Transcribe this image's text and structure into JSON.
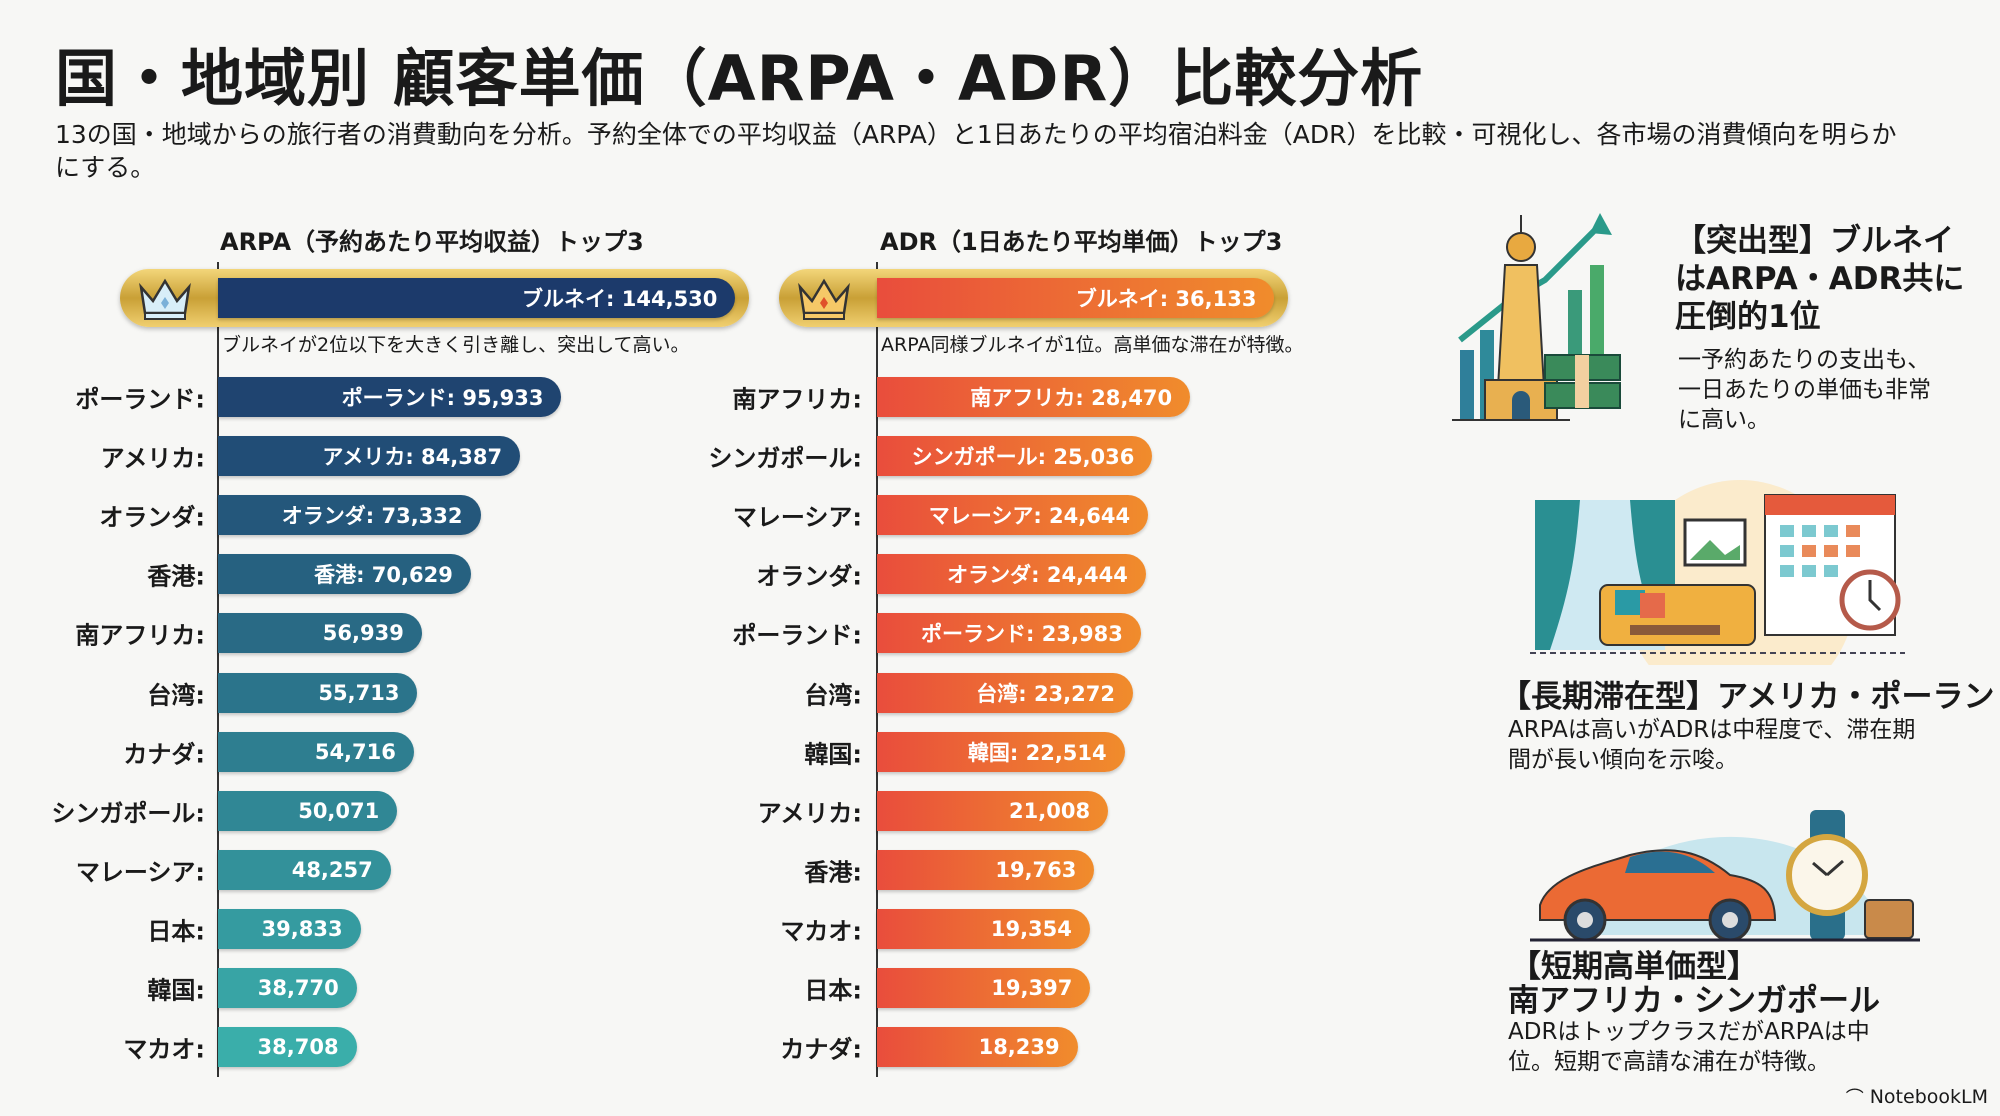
{
  "header": {
    "title": "国・地域別 顧客単価（ARPA・ADR）比較分析",
    "subtitle": "13の国・地域からの旅行者の消費動向を分析。予約全体での平均収益（ARPA）と1日あたりの平均宿泊料金（ADR）を比較・可視化し、各市場の消費傾向を明らかにする。"
  },
  "chart_data": [
    {
      "type": "bar",
      "orientation": "horizontal",
      "title": "ARPA（予約あたり平均収益）トップ3",
      "top_note": "ブルネイが2位以下を大きく引き離し、突出して高い。",
      "colors": [
        "#1c3a6b",
        "#3aaeaa"
      ],
      "items": [
        {
          "label": "ブルネイ",
          "value": 144530,
          "inner_label": "ブルネイ: 144,530"
        },
        {
          "label": "ポーランド:",
          "value": 95933,
          "inner_label": "ポーランド: 95,933"
        },
        {
          "label": "アメリカ:",
          "value": 84387,
          "inner_label": "アメリカ: 84,387"
        },
        {
          "label": "オランダ:",
          "value": 73332,
          "inner_label": "オランダ: 73,332"
        },
        {
          "label": "香港:",
          "value": 70629,
          "inner_label": "香港: 70,629"
        },
        {
          "label": "南アフリカ:",
          "value": 56939,
          "inner_label": "56,939"
        },
        {
          "label": "台湾:",
          "value": 55713,
          "inner_label": "55,713"
        },
        {
          "label": "カナダ:",
          "value": 54716,
          "inner_label": "54,716"
        },
        {
          "label": "シンガポール:",
          "value": 50071,
          "inner_label": "50,071"
        },
        {
          "label": "マレーシア:",
          "value": 48257,
          "inner_label": "48,257"
        },
        {
          "label": "日本:",
          "value": 39833,
          "inner_label": "39,833"
        },
        {
          "label": "韓国:",
          "value": 38770,
          "inner_label": "38,770"
        },
        {
          "label": "マカオ:",
          "value": 38708,
          "inner_label": "38,708"
        }
      ]
    },
    {
      "type": "bar",
      "orientation": "horizontal",
      "title": "ADR（1日あたり平均単価）トップ3",
      "top_note": "ARPA同様ブルネイが1位。高単価な滞在が特徴。",
      "colors": [
        "#e94d3c",
        "#f08c2c"
      ],
      "items": [
        {
          "label": "ブルネイ",
          "value": 36133,
          "inner_label": "ブルネイ: 36,133"
        },
        {
          "label": "南アフリカ:",
          "value": 28470,
          "inner_label": "南アフリカ: 28,470"
        },
        {
          "label": "シンガポール:",
          "value": 25036,
          "inner_label": "シンガポール: 25,036"
        },
        {
          "label": "マレーシア:",
          "value": 24644,
          "inner_label": "マレーシア: 24,644"
        },
        {
          "label": "オランダ:",
          "value": 24444,
          "inner_label": "オランダ: 24,444"
        },
        {
          "label": "ポーランド:",
          "value": 23983,
          "inner_label": "ポーランド: 23,983"
        },
        {
          "label": "台湾:",
          "value": 23272,
          "inner_label": "台湾: 23,272"
        },
        {
          "label": "韓国:",
          "value": 22514,
          "inner_label": "韓国: 22,514"
        },
        {
          "label": "アメリカ:",
          "value": 21008,
          "inner_label": "21,008"
        },
        {
          "label": "香港:",
          "value": 19763,
          "inner_label": "19,763"
        },
        {
          "label": "マカオ:",
          "value": 19354,
          "inner_label": "19,354"
        },
        {
          "label": "日本:",
          "value": 19397,
          "inner_label": "19,397"
        },
        {
          "label": "カナダ:",
          "value": 18239,
          "inner_label": "18,239"
        }
      ]
    }
  ],
  "insights": [
    {
      "title": "【突出型】ブルネイはARPA・ADR共に圧倒的1位",
      "desc": "一予約あたりの支出も、一日あたりの単価も非常に高い。"
    },
    {
      "title": "【長期滞在型】アメリカ・ポーランド",
      "desc": "ARPAは高いがADRは中程度で、滞在期間が長い傾向を示唆。"
    },
    {
      "title_line1": "【短期高単価型】",
      "title_line2": "南アフリカ・シンガポール",
      "desc": "ADRはトップクラスだがARPAは中位。短期で高請な浦在が特徴。"
    }
  ],
  "brand": "NotebookLM"
}
